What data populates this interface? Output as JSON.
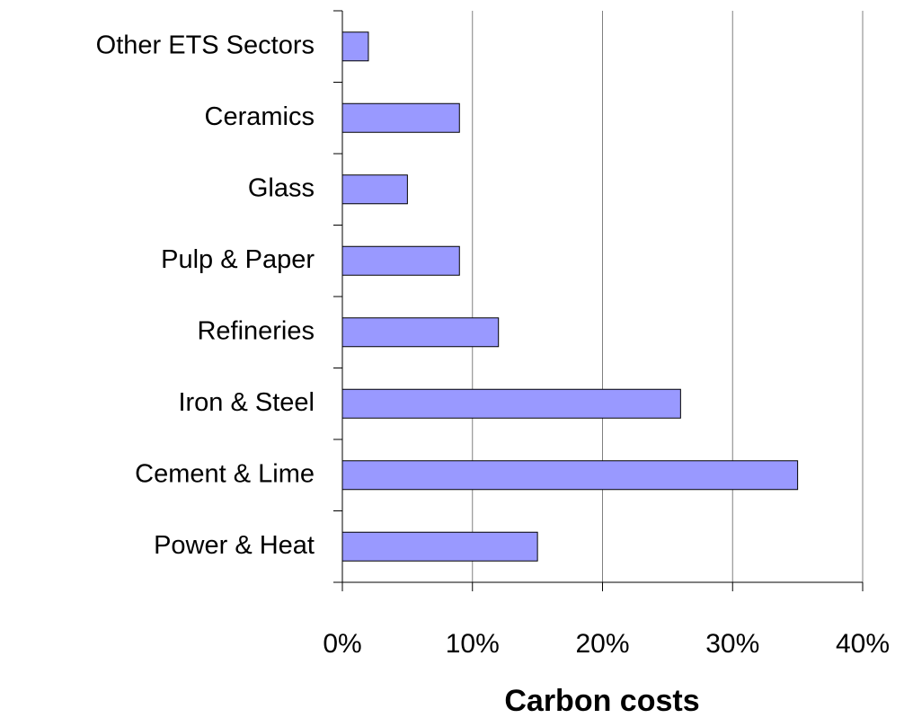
{
  "chart_data": {
    "type": "bar",
    "orientation": "horizontal",
    "x_label": "Carbon costs",
    "categories": [
      "Power & Heat",
      "Cement & Lime",
      "Iron & Steel",
      "Refineries",
      "Pulp & Paper",
      "Glass",
      "Ceramics",
      "Other ETS Sectors"
    ],
    "values": [
      15,
      35,
      26,
      12,
      9,
      5,
      9,
      2
    ],
    "color": "#9999ff",
    "xlim": [
      0,
      40
    ],
    "xticks": [
      {
        "value": 0,
        "label": "0%"
      },
      {
        "value": 10,
        "label": "10%"
      },
      {
        "value": 20,
        "label": "20%"
      },
      {
        "value": 30,
        "label": "30%"
      },
      {
        "value": 40,
        "label": "40%"
      }
    ],
    "grid": true
  }
}
